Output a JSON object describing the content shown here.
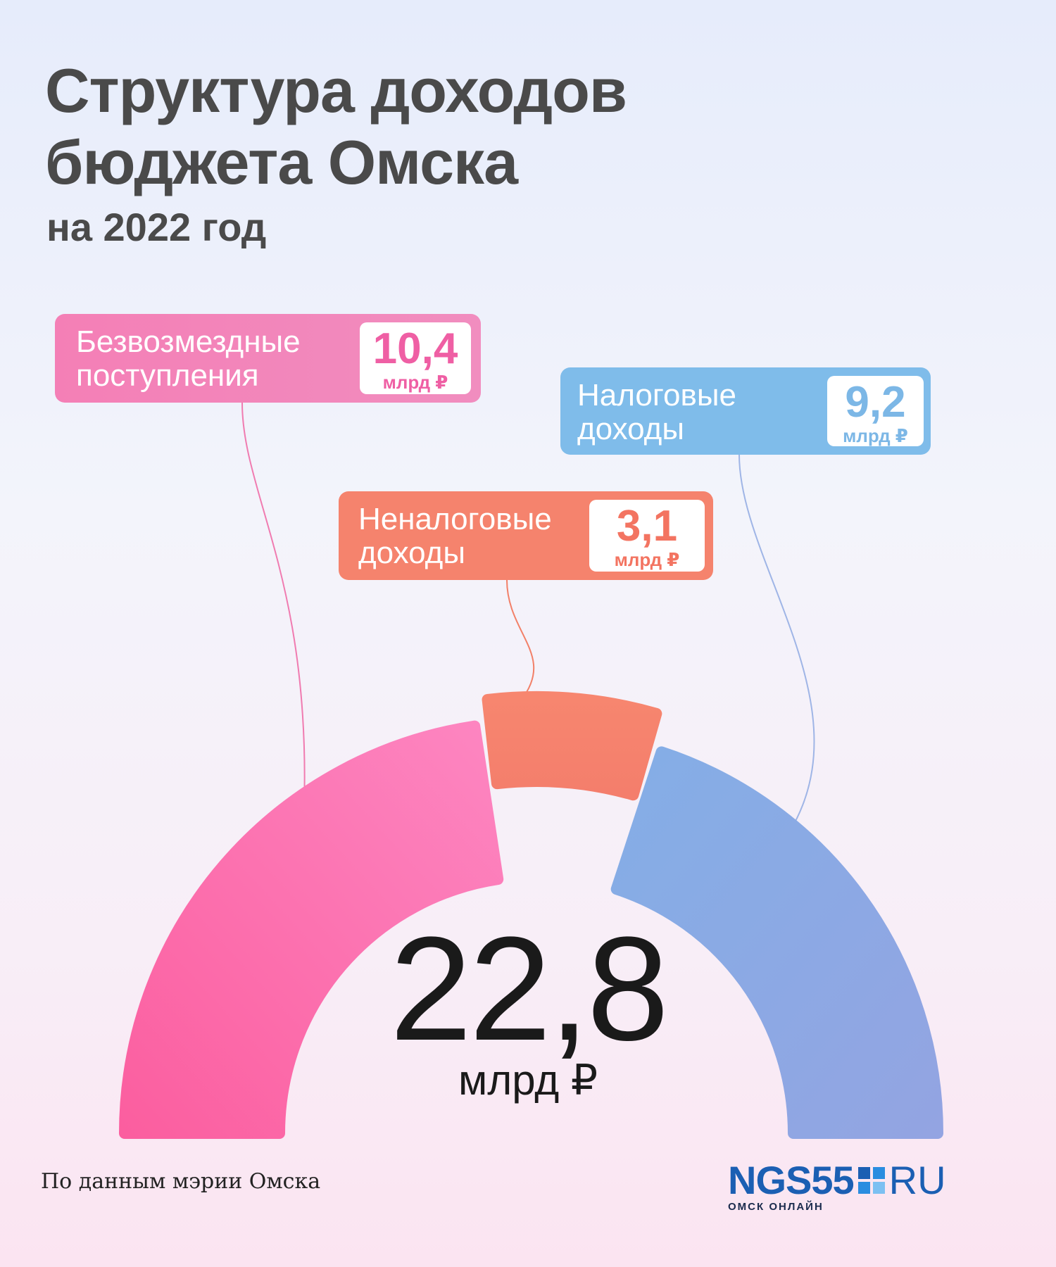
{
  "header": {
    "title_line1": "Структура доходов",
    "title_line2": "бюджета Омска",
    "subtitle": "на 2022 год"
  },
  "chart_data": {
    "type": "pie",
    "layout": "half-donut",
    "unit": "млрд ₽",
    "categories": [
      "Безвозмездные поступления",
      "Неналоговые доходы",
      "Налоговые доходы"
    ],
    "labels": [
      "Безвозмездные\nпоступления",
      "Неналоговые\nдоходы",
      "Налоговые\nдоходы"
    ],
    "values": [
      10.4,
      3.1,
      9.2
    ],
    "value_labels": [
      "10,4",
      "3,1",
      "9,2"
    ],
    "colors": [
      "#f66fab",
      "#f5846c",
      "#8aaee6"
    ],
    "total": 22.8,
    "total_label": "22,8"
  },
  "footer": {
    "source": "По данным мэрии Омска",
    "logo_brand": "NGS55",
    "logo_tld": "RU",
    "logo_tagline": "ОМСК ОНЛАЙН"
  }
}
